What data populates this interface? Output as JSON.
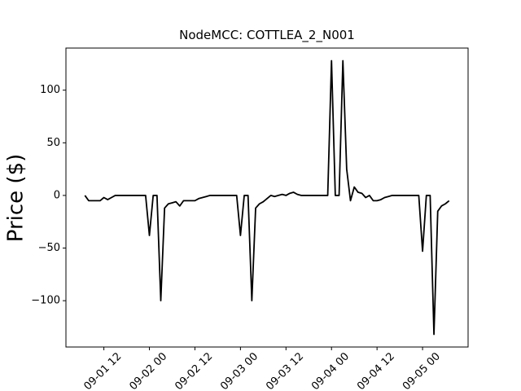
{
  "chart_data": {
    "type": "line",
    "title": "NodeMCC: COTTLEA_2_N001",
    "y_label": "Price ($)",
    "x": [
      "09-01 07",
      "09-01 08",
      "09-01 09",
      "09-01 10",
      "09-01 11",
      "09-01 12",
      "09-01 13",
      "09-01 14",
      "09-01 15",
      "09-01 16",
      "09-01 17",
      "09-01 18",
      "09-01 19",
      "09-01 20",
      "09-01 21",
      "09-01 22",
      "09-01 23",
      "09-02 00",
      "09-02 01",
      "09-02 02",
      "09-02 03",
      "09-02 04",
      "09-02 05",
      "09-02 06",
      "09-02 07",
      "09-02 08",
      "09-02 09",
      "09-02 10",
      "09-02 11",
      "09-02 12",
      "09-02 13",
      "09-02 14",
      "09-02 15",
      "09-02 16",
      "09-02 17",
      "09-02 18",
      "09-02 19",
      "09-02 20",
      "09-02 21",
      "09-02 22",
      "09-02 23",
      "09-03 00",
      "09-03 01",
      "09-03 02",
      "09-03 03",
      "09-03 04",
      "09-03 05",
      "09-03 06",
      "09-03 07",
      "09-03 08",
      "09-03 09",
      "09-03 10",
      "09-03 11",
      "09-03 12",
      "09-03 13",
      "09-03 14",
      "09-03 15",
      "09-03 16",
      "09-03 17",
      "09-03 18",
      "09-03 19",
      "09-03 20",
      "09-03 21",
      "09-03 22",
      "09-03 23",
      "09-04 00",
      "09-04 01",
      "09-04 02",
      "09-04 03",
      "09-04 04",
      "09-04 05",
      "09-04 06",
      "09-04 07",
      "09-04 08",
      "09-04 09",
      "09-04 10",
      "09-04 11",
      "09-04 12",
      "09-04 13",
      "09-04 14",
      "09-04 15",
      "09-04 16",
      "09-04 17",
      "09-04 18",
      "09-04 19",
      "09-04 20",
      "09-04 21",
      "09-04 22",
      "09-04 23",
      "09-05 00",
      "09-05 01",
      "09-05 02",
      "09-05 03",
      "09-05 04",
      "09-05 05",
      "09-05 06",
      "09-05 07"
    ],
    "series": [
      {
        "color": "#000000",
        "values": [
          0,
          -5,
          -5,
          -5,
          -5,
          -2,
          -4,
          -2,
          0,
          0,
          0,
          0,
          0,
          0,
          0,
          0,
          0,
          -38,
          0,
          0,
          -100,
          -12,
          -8,
          -7,
          -6,
          -10,
          -5,
          -5,
          -5,
          -5,
          -3,
          -2,
          -1,
          0,
          0,
          0,
          0,
          0,
          0,
          0,
          0,
          -38,
          0,
          0,
          -100,
          -12,
          -8,
          -6,
          -3,
          0,
          -1,
          0,
          1,
          0,
          2,
          3,
          1,
          0,
          0,
          0,
          0,
          0,
          0,
          0,
          0,
          128,
          0,
          0,
          128,
          25,
          -5,
          8,
          3,
          2,
          -2,
          0,
          -5,
          -5,
          -4,
          -2,
          -1,
          0,
          0,
          0,
          0,
          0,
          0,
          0,
          0,
          -53,
          0,
          0,
          -132,
          -15,
          -10,
          -8,
          -5
        ]
      }
    ],
    "xlim": [
      "09-01 02",
      "09-05 12"
    ],
    "xticks": [
      "09-01 12",
      "09-02 00",
      "09-02 12",
      "09-03 00",
      "09-03 12",
      "09-04 00",
      "09-04 12",
      "09-05 00"
    ],
    "ylim": [
      -144,
      140
    ],
    "yticks": [
      {
        "value": -100,
        "label": "−100"
      },
      {
        "value": -50,
        "label": "−50"
      },
      0,
      50,
      100
    ]
  }
}
